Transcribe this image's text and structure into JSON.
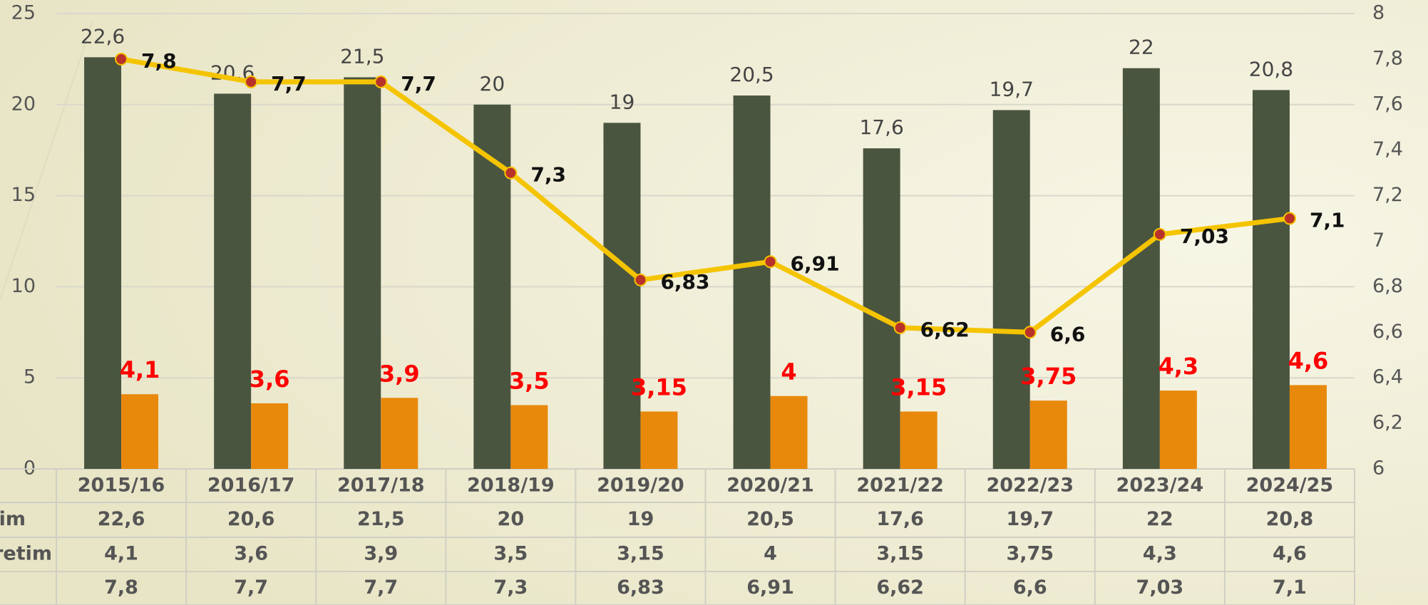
{
  "chart_data": {
    "type": "bar-line",
    "categories": [
      "2015/16",
      "2016/17",
      "2017/18",
      "2018/19",
      "2019/20",
      "2020/21",
      "2021/22",
      "2022/23",
      "2023/24",
      "2024/25"
    ],
    "series": [
      {
        "name": "im",
        "type": "bar",
        "color": "#4a5540",
        "values": [
          22.6,
          20.6,
          21.5,
          20,
          19,
          20.5,
          17.6,
          19.7,
          22,
          20.8
        ],
        "value_labels": [
          "22,6",
          "20,6",
          "21,5",
          "20",
          "19",
          "20,5",
          "17,6",
          "19,7",
          "22",
          "20,8"
        ]
      },
      {
        "name": "retim",
        "type": "bar",
        "color": "#e8890c",
        "values": [
          4.1,
          3.6,
          3.9,
          3.5,
          3.15,
          4,
          3.15,
          3.75,
          4.3,
          4.6
        ],
        "value_labels": [
          "4,1",
          "3,6",
          "3,9",
          "3,5",
          "3,15",
          "4",
          "3,15",
          "3,75",
          "4,3",
          "4,6"
        ]
      },
      {
        "type": "line",
        "axis": "y2",
        "color": "#f5c400",
        "values": [
          7.8,
          7.7,
          7.7,
          7.3,
          6.83,
          6.91,
          6.62,
          6.6,
          7.03,
          7.1
        ],
        "value_labels": [
          "7,8",
          "7,7",
          "7,7",
          "7,3",
          "6,83",
          "6,91",
          "6,62",
          "6,6",
          "7,03",
          "7,1"
        ]
      }
    ],
    "ylim": [
      0,
      25
    ],
    "yticks": [
      0,
      5,
      10,
      15,
      20,
      25
    ],
    "y2lim": [
      6,
      8
    ],
    "y2ticks": [
      6,
      {
        "value": 6.2,
        "label": "6,2"
      },
      {
        "value": 6.4,
        "label": "6,4"
      },
      {
        "value": 6.6,
        "label": "6,6"
      },
      {
        "value": 6.8,
        "label": "6,8"
      },
      7,
      {
        "value": 7.2,
        "label": "7,2"
      },
      {
        "value": 7.4,
        "label": "7,4"
      },
      {
        "value": 7.6,
        "label": "7,6"
      },
      {
        "value": 7.8,
        "label": "7,8"
      },
      8
    ],
    "grid": true,
    "data_table": true
  }
}
